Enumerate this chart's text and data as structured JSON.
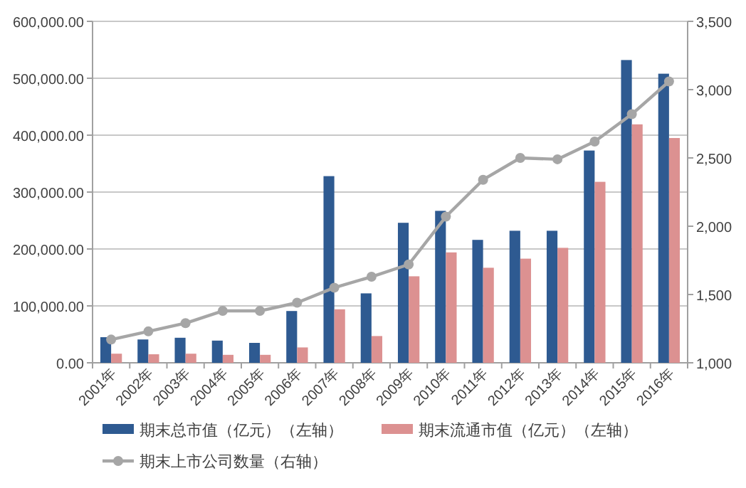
{
  "chart_data": {
    "type": "bar",
    "categories": [
      "2001年",
      "2002年",
      "2003年",
      "2004年",
      "2005年",
      "2006年",
      "2007年",
      "2008年",
      "2009年",
      "2010年",
      "2011年",
      "2012年",
      "2013年",
      "2014年",
      "2015年",
      "2016年"
    ],
    "series": [
      {
        "name": "期末总市值（亿元）（左轴）",
        "color": "#2e5a91",
        "values": [
          45000,
          41000,
          44000,
          39000,
          35000,
          91000,
          328000,
          122000,
          246000,
          267000,
          216000,
          232000,
          232000,
          373000,
          532000,
          508000
        ]
      },
      {
        "name": "期末流通市值（亿元）（左轴）",
        "color": "#dc9191",
        "values": [
          16000,
          15000,
          16000,
          14000,
          14000,
          27000,
          94000,
          47000,
          152000,
          194000,
          167000,
          183000,
          202000,
          318000,
          419000,
          395000
        ]
      },
      {
        "name": "期末上市公司数量（右轴）",
        "type": "line",
        "axis": "y2",
        "color": "#a6a6a6",
        "marker": "circle",
        "values": [
          1170,
          1230,
          1290,
          1380,
          1380,
          1440,
          1550,
          1630,
          1720,
          2070,
          2340,
          2500,
          2490,
          2620,
          2820,
          3060
        ]
      }
    ],
    "ylim": [
      0,
      600000
    ],
    "yticks": [
      {
        "value": 0,
        "label": "0.00"
      },
      {
        "value": 100000,
        "label": "100,000.00"
      },
      {
        "value": 200000,
        "label": "200,000.00"
      },
      {
        "value": 300000,
        "label": "300,000.00"
      },
      {
        "value": 400000,
        "label": "400,000.00"
      },
      {
        "value": 500000,
        "label": "500,000.00"
      },
      {
        "value": 600000,
        "label": "600,000.00"
      }
    ],
    "y2lim": [
      1000,
      3500
    ],
    "y2ticks": [
      {
        "value": 1000,
        "label": "1,000"
      },
      {
        "value": 1500,
        "label": "1,500"
      },
      {
        "value": 2000,
        "label": "2,000"
      },
      {
        "value": 2500,
        "label": "2,500"
      },
      {
        "value": 3000,
        "label": "3,000"
      },
      {
        "value": 3500,
        "label": "3,500"
      }
    ],
    "grid": "y",
    "legend": "bottom"
  }
}
